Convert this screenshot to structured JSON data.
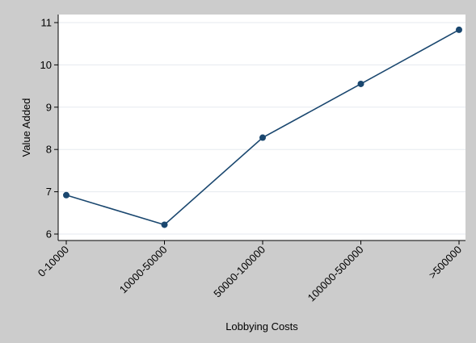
{
  "chart_data": {
    "type": "line",
    "xlabel": "Lobbying Costs",
    "ylabel": "Value Added",
    "categories": [
      "0-10000",
      "10000-50000",
      "50000-100000",
      "100000-500000",
      ">500000"
    ],
    "series": [
      {
        "values": [
          6.92,
          6.22,
          8.28,
          9.55,
          10.83
        ]
      }
    ],
    "ylim": [
      5.8,
      11.2
    ],
    "yticks": [
      6,
      7,
      8,
      9,
      10,
      11
    ],
    "grid": "horizontal",
    "legend": "none",
    "colors": {
      "outer_background": "#cccccc",
      "plot_background": "#ffffff",
      "gridline": "#e6eaef",
      "line": "#1a476f",
      "marker": "#1a476f"
    }
  }
}
